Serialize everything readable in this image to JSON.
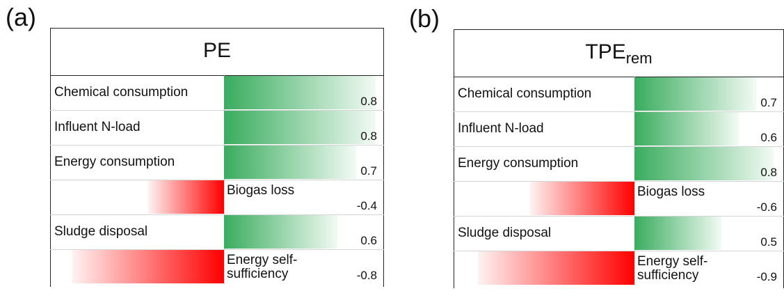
{
  "chart_data": [
    {
      "type": "bar",
      "orientation": "horizontal",
      "panel_label": "(a)",
      "title": "PE",
      "categories": [
        "Chemical consumption",
        "Influent N-load",
        "Energy consumption",
        "Biogas loss",
        "Sludge disposal",
        "Energy self-sufficiency"
      ],
      "values": [
        0.8,
        0.8,
        0.7,
        -0.4,
        0.6,
        -0.8
      ],
      "positive_color": "#3aac5e",
      "negative_color": "#ff0000"
    },
    {
      "type": "bar",
      "orientation": "horizontal",
      "panel_label": "(b)",
      "title": "TPE",
      "title_subscript": "rem",
      "categories": [
        "Chemical consumption",
        "Influent N-load",
        "Energy consumption",
        "Biogas loss",
        "Sludge disposal",
        "Energy self-sufficiency"
      ],
      "values": [
        0.7,
        0.6,
        0.8,
        -0.6,
        0.5,
        -0.9
      ],
      "positive_color": "#3aac5e",
      "negative_color": "#ff0000"
    }
  ]
}
